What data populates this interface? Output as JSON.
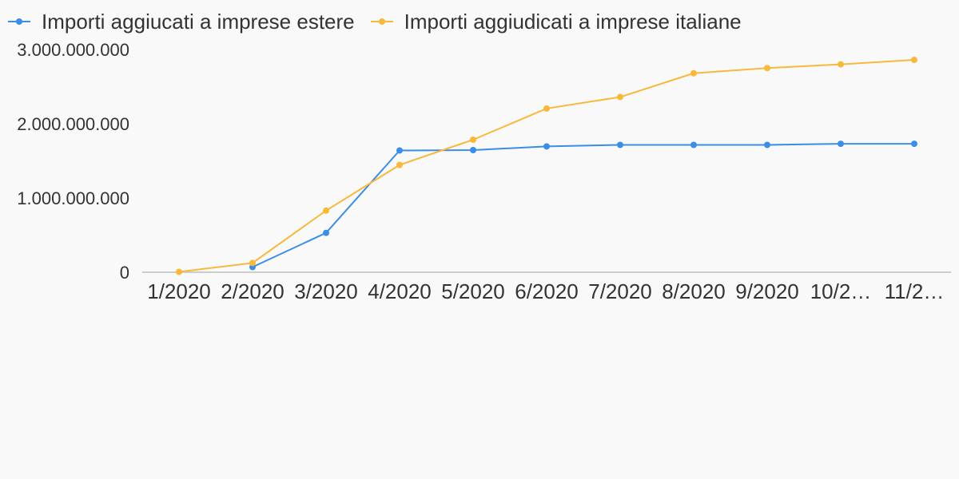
{
  "legend": {
    "series0": "Importi aggiucati a imprese estere",
    "series1": "Importi aggiudicati a imprese italiane"
  },
  "chart_data": {
    "type": "line",
    "x_tick_labels": [
      "1/2020",
      "2/2020",
      "3/2020",
      "4/2020",
      "5/2020",
      "6/2020",
      "7/2020",
      "8/2020",
      "9/2020",
      "10/2…",
      "11/2…"
    ],
    "y_tick_labels": [
      "0",
      "1.000.000.000",
      "2.000.000.000",
      "3.000.000.000"
    ],
    "y_ticks": [
      0,
      1000000000,
      2000000000,
      3000000000
    ],
    "ylim": [
      0,
      3000000000
    ],
    "grid": false,
    "legend_position": "top-left",
    "series": [
      {
        "name": "Importi aggiucati a imprese estere",
        "color": "#3a8ee6",
        "values": [
          null,
          70000000,
          530000000,
          1640000000,
          1645000000,
          1695000000,
          1715000000,
          1715000000,
          1715000000,
          1730000000,
          1730000000
        ]
      },
      {
        "name": "Importi aggiudicati a imprese italiane",
        "color": "#f8b93b",
        "values": [
          5000000,
          125000000,
          830000000,
          1445000000,
          1785000000,
          2205000000,
          2360000000,
          2680000000,
          2750000000,
          2800000000,
          2860000000
        ]
      }
    ]
  }
}
